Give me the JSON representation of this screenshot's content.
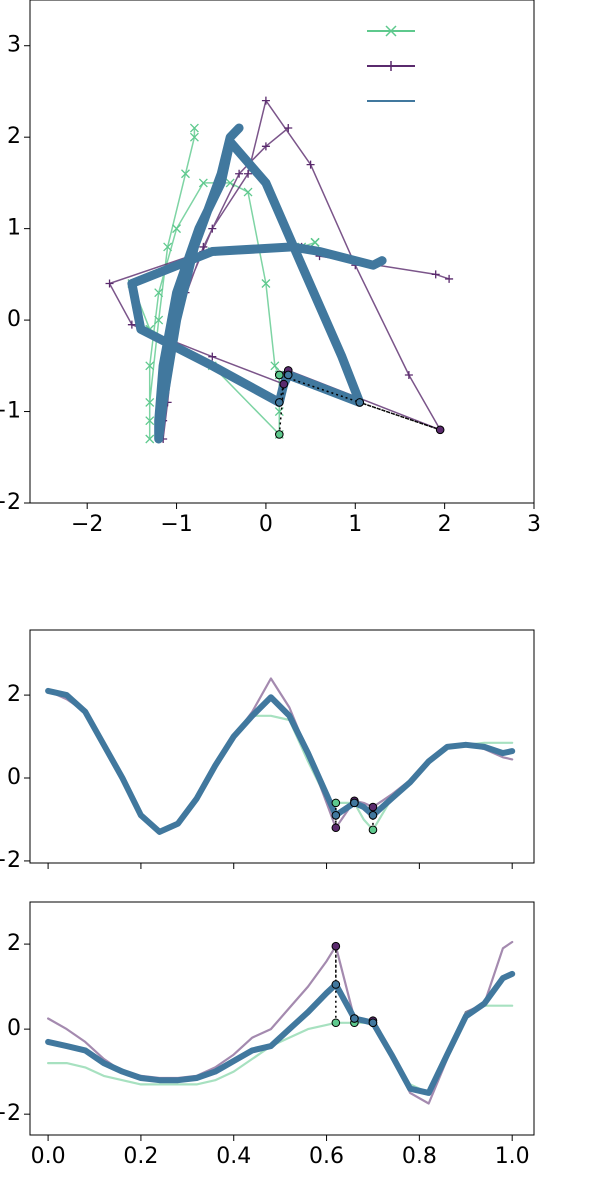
{
  "chart_data": [
    {
      "type": "trajectory",
      "legend": "upper right",
      "xlim": [
        -2.64,
        3
      ],
      "ylim": [
        -2,
        3.5
      ],
      "xticks": [
        {
          "value": -2,
          "label": "−2"
        },
        {
          "value": -1,
          "label": "−1"
        },
        0,
        1,
        2,
        3
      ],
      "yticks": [
        {
          "value": -2,
          "label": "−2"
        },
        {
          "value": -1,
          "label": "−1"
        },
        0,
        1,
        2,
        3
      ],
      "highlight_indices": [
        16,
        17,
        19
      ],
      "series": [
        {
          "color": "#5ec98d",
          "marker": "x",
          "x": [
            -0.8,
            -0.8,
            -0.9,
            -1.1,
            -1.2,
            -1.3,
            -1.3,
            -1.3,
            -1.3,
            -1.2,
            -1.0,
            -0.7,
            -0.4,
            -0.2,
            0.0,
            0.1,
            0.15,
            0.15,
            0.15,
            0.15,
            -0.6,
            -1.3,
            -1.5,
            -0.6,
            0.4,
            0.55,
            0.55,
            0.55
          ],
          "values": [
            2.1,
            2.0,
            1.6,
            0.8,
            0.0,
            -0.9,
            -1.3,
            -1.1,
            -0.5,
            0.3,
            1.0,
            1.5,
            1.5,
            1.4,
            0.4,
            -0.5,
            -0.6,
            -0.6,
            -1.0,
            -1.25,
            -0.5,
            -0.1,
            0.4,
            0.75,
            0.8,
            0.85,
            0.85,
            0.85
          ]
        },
        {
          "color": "#5a2a6d",
          "marker": "+",
          "x": [
            0.25,
            0.0,
            -0.3,
            -0.7,
            -1.0,
            -1.1,
            -1.15,
            -1.15,
            -1.1,
            -0.9,
            -0.6,
            -0.2,
            0.0,
            0.5,
            1.0,
            1.6,
            1.95,
            0.25,
            0.2,
            0.2,
            -0.6,
            -1.5,
            -1.75,
            -0.7,
            0.4,
            0.6,
            1.9,
            2.05
          ],
          "values": [
            2.1,
            1.9,
            1.6,
            0.8,
            0.0,
            -0.9,
            -1.3,
            -1.1,
            -0.5,
            0.3,
            1.0,
            1.6,
            2.4,
            1.7,
            0.6,
            -0.6,
            -1.2,
            -0.55,
            -0.6,
            -0.7,
            -0.4,
            -0.05,
            0.4,
            0.75,
            0.8,
            0.7,
            0.5,
            0.45
          ]
        },
        {
          "color": "#41789e",
          "marker": "none",
          "x": [
            -0.3,
            -0.4,
            -0.5,
            -0.8,
            -1.0,
            -1.15,
            -1.2,
            -1.2,
            -1.15,
            -1.0,
            -0.75,
            -0.5,
            -0.4,
            0.0,
            0.4,
            0.85,
            1.05,
            0.25,
            0.2,
            0.15,
            -0.6,
            -1.4,
            -1.5,
            -0.6,
            0.3,
            0.6,
            1.2,
            1.3
          ],
          "values": [
            2.1,
            2.0,
            1.6,
            0.8,
            0.0,
            -0.9,
            -1.3,
            -1.1,
            -0.5,
            0.3,
            1.0,
            1.5,
            1.95,
            1.5,
            0.6,
            -0.4,
            -0.9,
            -0.6,
            -0.7,
            -0.9,
            -0.5,
            -0.1,
            0.4,
            0.75,
            0.8,
            0.75,
            0.6,
            0.65
          ]
        }
      ]
    },
    {
      "type": "line",
      "xticklabels": false,
      "x": [
        0,
        0.04,
        0.08,
        0.12,
        0.16,
        0.2,
        0.24,
        0.28,
        0.32,
        0.36,
        0.4,
        0.44,
        0.48,
        0.52,
        0.56,
        0.6,
        0.62,
        0.66,
        0.68,
        0.7,
        0.74,
        0.78,
        0.82,
        0.86,
        0.9,
        0.94,
        0.98,
        1.0
      ],
      "xlim": [
        -0.039,
        1.047
      ],
      "ylim": [
        -2.05,
        3.57
      ],
      "xticks": [
        {
          "value": 0,
          "label": "0.0"
        },
        0.2,
        0.4,
        0.6,
        0.8,
        {
          "value": 1,
          "label": "1.0"
        }
      ],
      "yticks": [
        {
          "value": -2,
          "label": "−2"
        },
        0,
        2
      ],
      "highlight_indices": [
        16,
        17,
        19
      ],
      "series": [
        {
          "color": "#5ec98d",
          "values": [
            2.1,
            2.0,
            1.6,
            0.8,
            0.0,
            -0.9,
            -1.3,
            -1.1,
            -0.5,
            0.3,
            1.0,
            1.5,
            1.5,
            1.4,
            0.4,
            -0.5,
            -0.6,
            -0.6,
            -1.0,
            -1.25,
            -0.5,
            -0.1,
            0.4,
            0.75,
            0.8,
            0.85,
            0.85,
            0.85
          ]
        },
        {
          "color": "#5a2a6d",
          "values": [
            2.1,
            1.9,
            1.6,
            0.8,
            0.0,
            -0.9,
            -1.3,
            -1.1,
            -0.5,
            0.3,
            1.0,
            1.6,
            2.4,
            1.7,
            0.6,
            -0.6,
            -1.2,
            -0.55,
            -0.6,
            -0.7,
            -0.4,
            -0.05,
            0.4,
            0.75,
            0.8,
            0.7,
            0.5,
            0.45
          ]
        },
        {
          "color": "#41789e",
          "values": [
            2.1,
            2.0,
            1.6,
            0.8,
            0.0,
            -0.9,
            -1.3,
            -1.1,
            -0.5,
            0.3,
            1.0,
            1.5,
            1.95,
            1.5,
            0.6,
            -0.4,
            -0.9,
            -0.6,
            -0.7,
            -0.9,
            -0.5,
            -0.1,
            0.4,
            0.75,
            0.8,
            0.75,
            0.6,
            0.65
          ]
        }
      ]
    },
    {
      "type": "line",
      "xticklabels": true,
      "x": [
        0,
        0.04,
        0.08,
        0.12,
        0.16,
        0.2,
        0.24,
        0.28,
        0.32,
        0.36,
        0.4,
        0.44,
        0.48,
        0.52,
        0.56,
        0.6,
        0.62,
        0.66,
        0.68,
        0.7,
        0.74,
        0.78,
        0.82,
        0.86,
        0.9,
        0.94,
        0.98,
        1.0
      ],
      "xlim": [
        -0.039,
        1.047
      ],
      "ylim": [
        -2.49,
        2.99
      ],
      "xticks": [
        {
          "value": 0,
          "label": "0.0"
        },
        0.2,
        0.4,
        0.6,
        0.8,
        {
          "value": 1,
          "label": "1.0"
        }
      ],
      "yticks": [
        {
          "value": -2,
          "label": "−2"
        },
        0,
        2
      ],
      "highlight_indices": [
        16,
        17,
        19
      ],
      "series": [
        {
          "color": "#5ec98d",
          "values": [
            -0.8,
            -0.8,
            -0.9,
            -1.1,
            -1.2,
            -1.3,
            -1.3,
            -1.3,
            -1.3,
            -1.2,
            -1.0,
            -0.7,
            -0.4,
            -0.2,
            0.0,
            0.1,
            0.15,
            0.15,
            0.15,
            0.15,
            -0.6,
            -1.3,
            -1.5,
            -0.6,
            0.4,
            0.55,
            0.55,
            0.55
          ]
        },
        {
          "color": "#5a2a6d",
          "values": [
            0.25,
            0.0,
            -0.3,
            -0.7,
            -1.0,
            -1.1,
            -1.15,
            -1.15,
            -1.1,
            -0.9,
            -0.6,
            -0.2,
            0.0,
            0.5,
            1.0,
            1.6,
            1.95,
            0.25,
            0.2,
            0.2,
            -0.6,
            -1.5,
            -1.75,
            -0.7,
            0.4,
            0.6,
            1.9,
            2.05
          ]
        },
        {
          "color": "#41789e",
          "values": [
            -0.3,
            -0.4,
            -0.5,
            -0.8,
            -1.0,
            -1.15,
            -1.2,
            -1.2,
            -1.15,
            -1.0,
            -0.75,
            -0.5,
            -0.4,
            0.0,
            0.4,
            0.85,
            1.05,
            0.25,
            0.2,
            0.15,
            -0.6,
            -1.4,
            -1.5,
            -0.6,
            0.3,
            0.6,
            1.2,
            1.3
          ]
        }
      ]
    }
  ]
}
